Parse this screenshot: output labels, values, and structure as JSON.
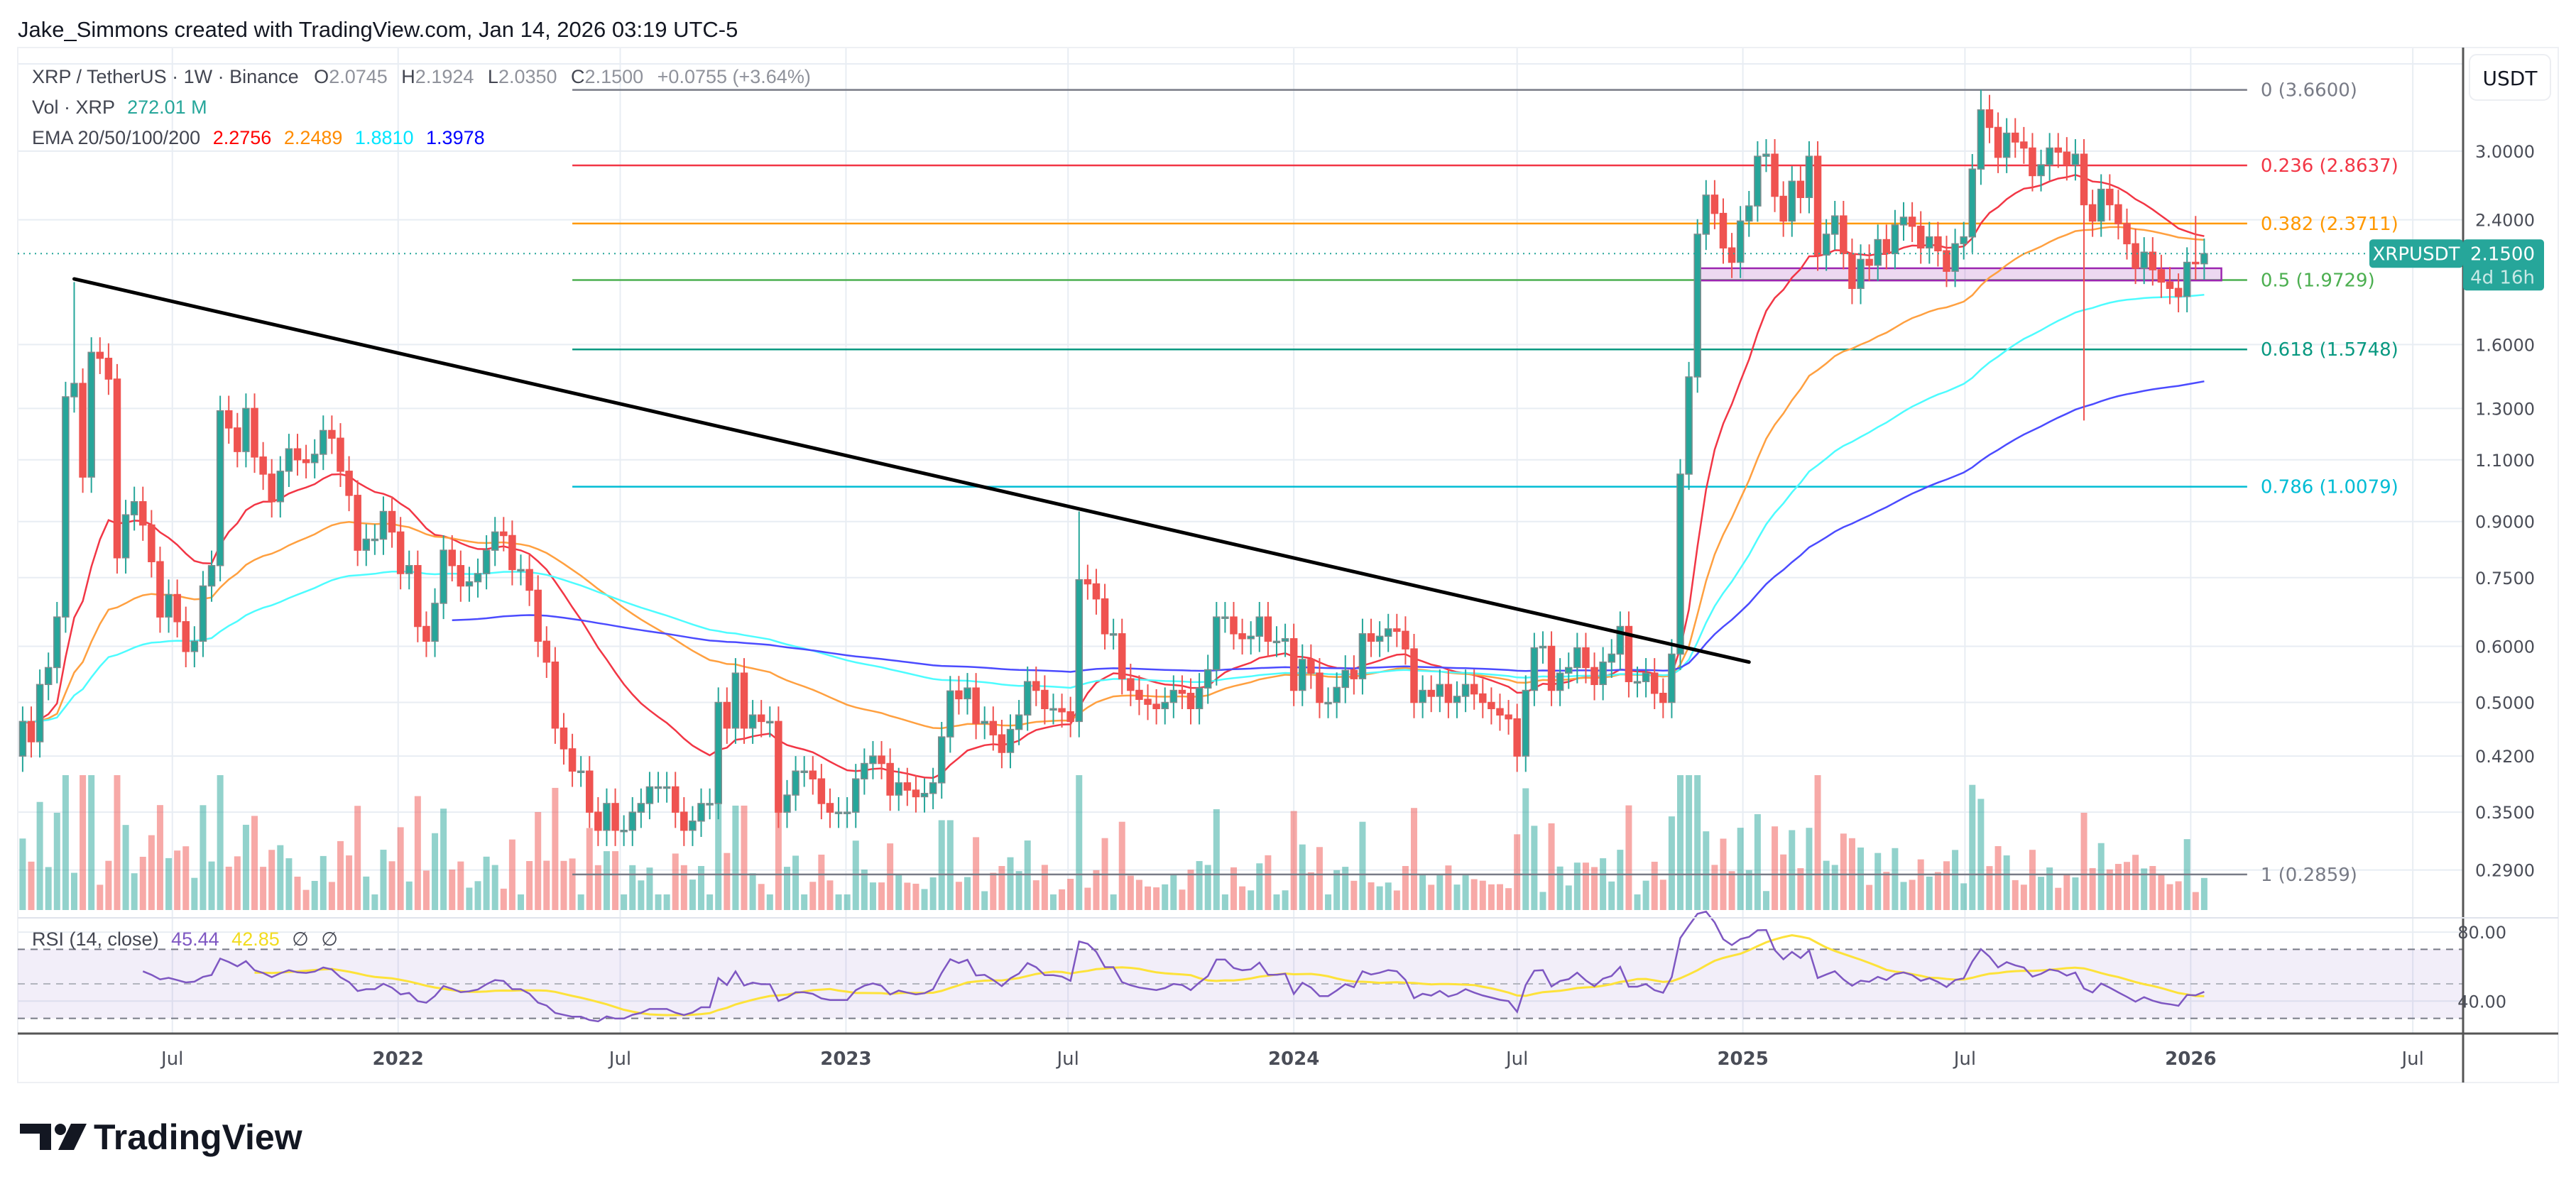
{
  "header": {
    "attribution": "Jake_Simmons created with TradingView.com, Jan 14, 2026 03:19 UTC-5"
  },
  "legend": {
    "symbol": "XRP / TetherUS · 1W · Binance",
    "o_label": "O",
    "o": "2.0745",
    "h_label": "H",
    "h": "2.1924",
    "l_label": "L",
    "l": "2.0350",
    "c_label": "C",
    "c": "2.1500",
    "change": "+0.0755 (+3.64%)",
    "vol_label": "Vol · XRP",
    "vol": "272.01 M",
    "ema_label": "EMA 20/50/100/200",
    "ema_values": [
      "2.2756",
      "2.2489",
      "1.8810",
      "1.3978"
    ]
  },
  "rsi": {
    "label": "RSI (14, close)",
    "value": "45.44",
    "ma": "42.85",
    "na1": "∅",
    "na2": "∅",
    "band": [
      70,
      30
    ],
    "mid": 50
  },
  "price_axis": {
    "currency": "USDT",
    "ticks": [
      "3.0000",
      "2.4000",
      "1.6000",
      "1.3000",
      "1.1000",
      "0.9000",
      "0.7500",
      "0.6000",
      "0.5000",
      "0.4200",
      "0.3500",
      "0.2900"
    ],
    "symbol_tag": "XRPUSDT",
    "last_price": "2.1500",
    "countdown": "4d 16h"
  },
  "rsi_axis": {
    "ticks": [
      "80.00",
      "40.00"
    ]
  },
  "time_axis": {
    "ticks": [
      {
        "label": "Jul",
        "date": "2021-07-01"
      },
      {
        "label": "2022",
        "date": "2022-01-01"
      },
      {
        "label": "Jul",
        "date": "2022-07-01"
      },
      {
        "label": "2023",
        "date": "2023-01-01"
      },
      {
        "label": "Jul",
        "date": "2023-07-01"
      },
      {
        "label": "2024",
        "date": "2024-01-01"
      },
      {
        "label": "Jul",
        "date": "2024-07-01"
      },
      {
        "label": "2025",
        "date": "2025-01-01"
      },
      {
        "label": "Jul",
        "date": "2025-07-01"
      },
      {
        "label": "2026",
        "date": "2026-01-01"
      },
      {
        "label": "Jul",
        "date": "2026-07-01"
      }
    ]
  },
  "fib": {
    "start": "2022-05-23",
    "end": "2026-02-16",
    "levels": [
      {
        "label": "0 (3.6600)",
        "price": 3.66,
        "color": "#787b86"
      },
      {
        "label": "0.236 (2.8637)",
        "price": 2.8637,
        "color": "#f23645"
      },
      {
        "label": "0.382 (2.3711)",
        "price": 2.3711,
        "color": "#ff9800"
      },
      {
        "label": "0.5 (1.9729)",
        "price": 1.9729,
        "color": "#4caf50"
      },
      {
        "label": "0.618 (1.5748)",
        "price": 1.5748,
        "color": "#089981"
      },
      {
        "label": "0.786 (1.0079)",
        "price": 1.0079,
        "color": "#00bcd4"
      },
      {
        "label": "1 (0.2859)",
        "price": 0.2859,
        "color": "#787b86"
      }
    ]
  },
  "colors": {
    "up": "#26a69a",
    "down": "#ef5350",
    "grid": "#e8edf3",
    "ema_legend": [
      "#ff0000",
      "#ff8c00",
      "#00e5ff",
      "#0000ff"
    ],
    "rsi_line": "#7e57c2",
    "rsi_ma": "#fde23a",
    "rsi_band": "#7e57c2",
    "zone": "#9c27b0",
    "trendline": "#000000"
  },
  "logo": {
    "text": "TradingView"
  },
  "chart_data": {
    "type": "candlestick",
    "interval": "1W",
    "scale": "log",
    "ylim": [
      0.25,
      4.2
    ],
    "xlim": [
      "2021-02-25",
      "2026-08-11"
    ],
    "first_week": "2021-03-01",
    "first_open": 0.42,
    "close": [
      0.47,
      0.44,
      0.53,
      0.56,
      0.66,
      1.35,
      1.41,
      1.04,
      1.56,
      1.53,
      1.43,
      0.8,
      0.92,
      0.96,
      0.89,
      0.79,
      0.66,
      0.71,
      0.65,
      0.59,
      0.61,
      0.73,
      0.78,
      1.29,
      1.22,
      1.13,
      1.3,
      1.11,
      1.05,
      0.96,
      1.06,
      1.14,
      1.1,
      1.09,
      1.12,
      1.21,
      1.18,
      1.06,
      0.98,
      0.82,
      0.85,
      0.85,
      0.93,
      0.87,
      0.76,
      0.78,
      0.64,
      0.61,
      0.69,
      0.82,
      0.78,
      0.73,
      0.74,
      0.76,
      0.82,
      0.87,
      0.86,
      0.77,
      0.77,
      0.72,
      0.61,
      0.57,
      0.46,
      0.43,
      0.4,
      0.4,
      0.35,
      0.33,
      0.36,
      0.33,
      0.33,
      0.35,
      0.36,
      0.38,
      0.38,
      0.38,
      0.35,
      0.33,
      0.34,
      0.36,
      0.36,
      0.5,
      0.46,
      0.55,
      0.46,
      0.48,
      0.47,
      0.47,
      0.35,
      0.37,
      0.4,
      0.4,
      0.39,
      0.36,
      0.35,
      0.35,
      0.35,
      0.39,
      0.41,
      0.42,
      0.41,
      0.37,
      0.385,
      0.376,
      0.368,
      0.372,
      0.385,
      0.447,
      0.519,
      0.506,
      0.524,
      0.467,
      0.47,
      0.45,
      0.425,
      0.458,
      0.48,
      0.535,
      0.52,
      0.49,
      0.49,
      0.485,
      0.47,
      0.745,
      0.735,
      0.7,
      0.625,
      0.625,
      0.54,
      0.52,
      0.505,
      0.497,
      0.49,
      0.5,
      0.52,
      0.515,
      0.49,
      0.524,
      0.556,
      0.66,
      0.66,
      0.625,
      0.615,
      0.62,
      0.66,
      0.61,
      0.61,
      0.615,
      0.52,
      0.575,
      0.55,
      0.5,
      0.5,
      0.525,
      0.555,
      0.54,
      0.625,
      0.61,
      0.62,
      0.635,
      0.63,
      0.595,
      0.5,
      0.52,
      0.51,
      0.53,
      0.5,
      0.51,
      0.53,
      0.514,
      0.5,
      0.49,
      0.48,
      0.474,
      0.42,
      0.52,
      0.597,
      0.6,
      0.52,
      0.55,
      0.56,
      0.597,
      0.56,
      0.53,
      0.57,
      0.585,
      0.64,
      0.535,
      0.535,
      0.55,
      0.515,
      0.5,
      0.585,
      1.05,
      1.44,
      2.29,
      2.6,
      2.45,
      2.19,
      2.09,
      2.39,
      2.51,
      2.95,
      2.97,
      2.59,
      2.39,
      2.72,
      2.58,
      2.95,
      2.14,
      2.29,
      2.43,
      2.15,
      1.92,
      2.11,
      2.07,
      2.25,
      2.15,
      2.36,
      2.42,
      2.35,
      2.19,
      2.27,
      2.17,
      2.03,
      2.22,
      2.27,
      2.83,
      3.43,
      3.24,
      2.94,
      3.18,
      3.09,
      3.03,
      2.77,
      2.87,
      3.03,
      2.99,
      2.87,
      2.97,
      2.52,
      2.39,
      2.65,
      2.52,
      2.37,
      2.22,
      2.05,
      2.16,
      2.04,
      1.96,
      1.92,
      1.87,
      2.09,
      2.08,
      2.15
    ],
    "wick_extremes": [
      {
        "week": "2021-04-12",
        "high": 1.96
      },
      {
        "week": "2023-07-10",
        "high": 0.93
      },
      {
        "week": "2025-07-14",
        "high": 3.66
      },
      {
        "week": "2025-10-06",
        "low": 1.25
      },
      {
        "week": "2026-01-05",
        "high": 2.43
      }
    ],
    "ema": [
      {
        "period": 20,
        "color": "#f23645"
      },
      {
        "period": 50,
        "color": "#ffa040"
      },
      {
        "period": 100,
        "color": "#4dfcff"
      },
      {
        "period": 200,
        "color": "#4b4bff",
        "starts": "2022-02-14"
      }
    ],
    "trendline": {
      "start": {
        "date": "2021-04-12",
        "price": 1.98
      },
      "end": {
        "date": "2025-01-06",
        "price": 0.57
      }
    },
    "zone": {
      "start": "2024-11-25",
      "end": "2026-01-26",
      "low": 1.97,
      "high": 2.05
    },
    "last_price": 2.15
  }
}
